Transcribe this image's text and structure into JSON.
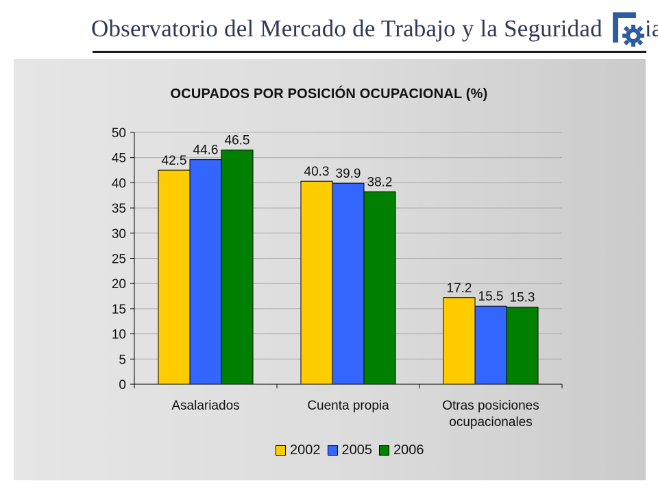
{
  "header": {
    "title": "Observatorio del Mercado de Trabajo y la Seguridad Social"
  },
  "colors": {
    "s2002": "#FFCC00",
    "s2005": "#3366FF",
    "s2006": "#008000",
    "header_text": "#2e3a56",
    "logo": "#2f5c9e"
  },
  "chart_data": {
    "type": "bar",
    "title": "OCUPADOS POR POSICIÓN OCUPACIONAL (%)",
    "categories": [
      [
        "Asalariados"
      ],
      [
        "Cuenta propia"
      ],
      [
        "Otras posiciones",
        "ocupacionales"
      ]
    ],
    "series": [
      {
        "name": "2002",
        "values": [
          42.5,
          40.3,
          17.2
        ],
        "color": "#FFCC00"
      },
      {
        "name": "2005",
        "values": [
          44.6,
          39.9,
          15.5
        ],
        "color": "#3366FF"
      },
      {
        "name": "2006",
        "values": [
          46.5,
          38.2,
          15.3
        ],
        "color": "#008000"
      }
    ],
    "ylim": [
      0,
      50
    ],
    "yticks": [
      0,
      5,
      10,
      15,
      20,
      25,
      30,
      35,
      40,
      45,
      50
    ],
    "grid": true,
    "legend_position": "bottom"
  }
}
